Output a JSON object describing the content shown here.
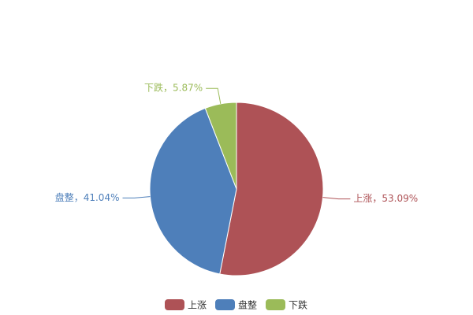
{
  "chart_data": {
    "type": "pie",
    "categories": [
      "上涨",
      "盘整",
      "下跌"
    ],
    "values": [
      53.09,
      41.04,
      5.87
    ],
    "value_labels": [
      "上涨，53.09%",
      "盘整，41.04%",
      "下跌，5.87%"
    ],
    "colors": [
      "#ae5256",
      "#4e7fba",
      "#9bbb59"
    ],
    "legend": "bottom"
  }
}
